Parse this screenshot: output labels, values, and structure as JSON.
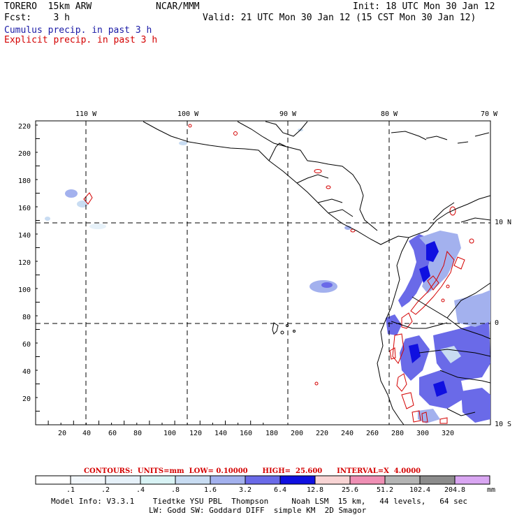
{
  "header": {
    "line1_left": "TORERO  15km ARW",
    "line1_mid": "NCAR/MMM",
    "line1_right": "Init: 18 UTC Mon 30 Jan 12",
    "line2_left": "Fcst:    3 h",
    "line2_right": "Valid: 21 UTC Mon 30 Jan 12 (15 CST Mon 30 Jan 12)",
    "cumulus_label": "Cumulus precip. in past 3 h",
    "explicit_label": "Explicit precip. in past 3 h"
  },
  "map": {
    "top_longitudes": [
      "110 W",
      "100 W",
      "90 W",
      "80 W",
      "70 W"
    ],
    "right_latitudes": [
      "10 N",
      "0",
      "10 S"
    ],
    "y_ticks": [
      "220",
      "200",
      "180",
      "160",
      "140",
      "120",
      "100",
      "80",
      "60",
      "40",
      "20"
    ],
    "x_ticks": [
      "20",
      "40",
      "60",
      "80",
      "100",
      "120",
      "140",
      "160",
      "180",
      "200",
      "220",
      "240",
      "260",
      "280",
      "300",
      "320"
    ]
  },
  "contours": {
    "text": "CONTOURS:  UNITS=mm  LOW= 0.10000      HIGH=  25.600      INTERVAL=X  4.0000"
  },
  "colorbar": {
    "labels": [
      ".1",
      ".2",
      ".4",
      ".8",
      "1.6",
      "3.2",
      "6.4",
      "12.8",
      "25.6",
      "51.2",
      "102.4",
      "204.8"
    ],
    "unit": "mm",
    "colors": [
      "#ffffff",
      "#f2f7fb",
      "#e6f1f9",
      "#d8f3f5",
      "#c8dcf2",
      "#a3b1ee",
      "#6a6ae8",
      "#1010e0",
      "#f8d4d4",
      "#ef8fb4",
      "#b4b4b4",
      "#8c8c8c",
      "#d9a6f2"
    ]
  },
  "footer": {
    "line1": "Model Info: V3.3.1    Tiedtke YSU PBL  Thompson     Noah LSM  15 km,   44 levels,   64 sec",
    "line2": "LW: Godd SW: Goddard DIFF  simple KM  2D Smagor"
  }
}
